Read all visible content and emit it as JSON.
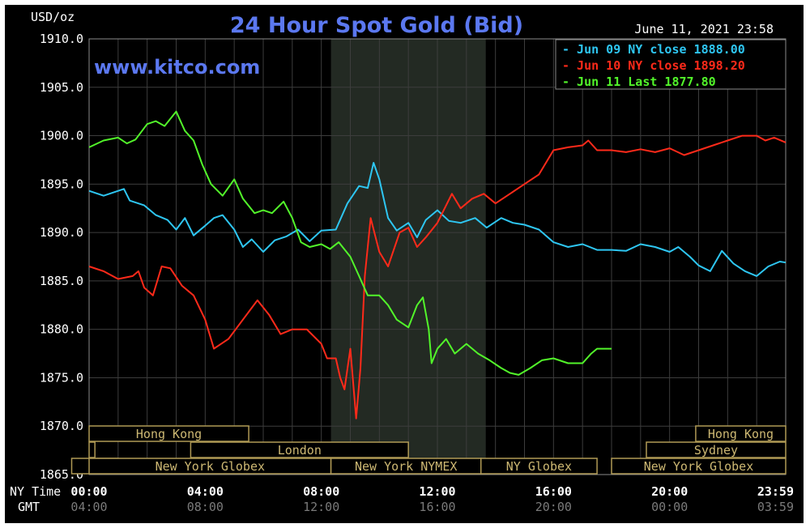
{
  "chart_data": {
    "type": "line",
    "title": "24 Hour Spot Gold (Bid)",
    "watermark": "www.kitco.com",
    "timestamp": "June 11, 2021 23:58",
    "ylabel": "USD/oz",
    "ylim": [
      1865,
      1910
    ],
    "yticks": [
      "1910.0",
      "1905.0",
      "1900.0",
      "1895.0",
      "1890.0",
      "1885.0",
      "1880.0",
      "1875.0",
      "1870.0",
      "1865.0"
    ],
    "x_row_labels": [
      "NY Time",
      "GMT"
    ],
    "xticks_ny": [
      "00:00",
      "04:00",
      "08:00",
      "12:00",
      "16:00",
      "20:00",
      "23:59"
    ],
    "xticks_gmt": [
      "04:00",
      "08:00",
      "12:00",
      "16:00",
      "20:00",
      "00:00",
      "03:59"
    ],
    "xlim": [
      0,
      24
    ],
    "grid": true,
    "shaded_session": [
      8.333,
      13.667
    ],
    "legend": [
      {
        "text": "Jun 09 NY close 1888.00",
        "color": "#2ec6f2"
      },
      {
        "text": "Jun 10 NY close 1898.20",
        "color": "#ff2a1a"
      },
      {
        "text": "Jun 11 Last 1877.80",
        "color": "#52f52a"
      }
    ],
    "markets": [
      {
        "label": "Hong Kong",
        "row": 0,
        "start": 0,
        "end": 5.5
      },
      {
        "label": "Hong Kong",
        "row": 0,
        "start": 20.9,
        "end": 24
      },
      {
        "label": "",
        "row": 1,
        "start": 0,
        "end": 0.2
      },
      {
        "label": "London",
        "row": 1,
        "start": 3.5,
        "end": 11
      },
      {
        "label": "Sydney",
        "row": 1,
        "start": 19.2,
        "end": 24
      },
      {
        "label": "",
        "row": 2,
        "start": -0.6,
        "end": 1.0
      },
      {
        "label": "New York Globex",
        "row": 2,
        "start": 0,
        "end": 8.333
      },
      {
        "label": "New York NYMEX",
        "row": 2,
        "start": 8.333,
        "end": 13.5
      },
      {
        "label": "NY Globex",
        "row": 2,
        "start": 13.5,
        "end": 17.5
      },
      {
        "label": "New York Globex",
        "row": 2,
        "start": 18,
        "end": 24
      }
    ],
    "series": [
      {
        "name": "Jun 09 NY close 1888.00",
        "color": "#2ec6f2",
        "x": [
          0,
          0.5,
          1.2,
          1.4,
          1.9,
          2.3,
          2.7,
          3.0,
          3.3,
          3.6,
          4.0,
          4.3,
          4.6,
          5.0,
          5.3,
          5.6,
          6.0,
          6.4,
          6.8,
          7.2,
          7.6,
          8.0,
          8.5,
          8.9,
          9.3,
          9.6,
          9.8,
          10.0,
          10.3,
          10.6,
          11.0,
          11.3,
          11.6,
          12.0,
          12.4,
          12.8,
          13.3,
          13.7,
          14.2,
          14.6,
          15.0,
          15.5,
          16.0,
          16.5,
          17.0,
          17.5,
          18.0,
          18.5,
          19.0,
          19.5,
          20.0,
          20.3,
          20.7,
          21.0,
          21.4,
          21.8,
          22.2,
          22.6,
          23.0,
          23.4,
          23.8,
          24.0
        ],
        "y": [
          1894.3,
          1893.8,
          1894.5,
          1893.3,
          1892.8,
          1891.8,
          1891.3,
          1890.3,
          1891.5,
          1889.7,
          1890.7,
          1891.5,
          1891.8,
          1890.3,
          1888.5,
          1889.3,
          1888.0,
          1889.2,
          1889.6,
          1890.3,
          1889.1,
          1890.2,
          1890.3,
          1893.0,
          1894.8,
          1894.6,
          1897.2,
          1895.5,
          1891.5,
          1890.2,
          1891.0,
          1889.5,
          1891.3,
          1892.3,
          1891.2,
          1891.0,
          1891.5,
          1890.5,
          1891.5,
          1891.0,
          1890.8,
          1890.3,
          1889.0,
          1888.5,
          1888.8,
          1888.2,
          1888.2,
          1888.1,
          1888.8,
          1888.5,
          1888.0,
          1888.5,
          1887.5,
          1886.6,
          1886.0,
          1888.1,
          1886.8,
          1886.0,
          1885.5,
          1886.5,
          1887.0,
          1886.9
        ]
      },
      {
        "name": "Jun 10 NY close 1898.20",
        "color": "#ff2a1a",
        "x": [
          0,
          0.5,
          1.0,
          1.5,
          1.7,
          1.9,
          2.2,
          2.5,
          2.8,
          3.2,
          3.6,
          4.0,
          4.3,
          4.8,
          5.3,
          5.8,
          6.2,
          6.6,
          7.0,
          7.5,
          8.0,
          8.2,
          8.5,
          8.65,
          8.8,
          9.0,
          9.2,
          9.35,
          9.5,
          9.7,
          10.0,
          10.3,
          10.7,
          11.0,
          11.3,
          11.6,
          12.0,
          12.5,
          12.8,
          13.2,
          13.6,
          14.0,
          14.5,
          15.0,
          15.5,
          16.0,
          16.5,
          17.0,
          17.2,
          17.5,
          18.0,
          18.5,
          19.0,
          19.5,
          20.0,
          20.5,
          21.0,
          21.5,
          22.0,
          22.5,
          23.0,
          23.3,
          23.6,
          24.0
        ],
        "y": [
          1886.5,
          1886.0,
          1885.2,
          1885.5,
          1886.0,
          1884.3,
          1883.5,
          1886.5,
          1886.3,
          1884.5,
          1883.5,
          1881.0,
          1878.0,
          1879.0,
          1881.0,
          1883.0,
          1881.5,
          1879.5,
          1880.0,
          1880.0,
          1878.5,
          1877.0,
          1877.0,
          1875.0,
          1873.8,
          1878.0,
          1870.8,
          1876.0,
          1885.5,
          1891.5,
          1888.0,
          1886.5,
          1890.0,
          1890.5,
          1888.5,
          1889.5,
          1891.0,
          1894.0,
          1892.5,
          1893.5,
          1894.0,
          1893.0,
          1894.0,
          1895.0,
          1896.0,
          1898.5,
          1898.8,
          1899.0,
          1899.5,
          1898.5,
          1898.5,
          1898.3,
          1898.6,
          1898.3,
          1898.7,
          1898.0,
          1898.5,
          1899.0,
          1899.5,
          1900.0,
          1900.0,
          1899.5,
          1899.8,
          1899.3
        ]
      },
      {
        "name": "Jun 11 Last 1877.80",
        "color": "#52f52a",
        "x": [
          0,
          0.5,
          1.0,
          1.3,
          1.6,
          2.0,
          2.3,
          2.6,
          3.0,
          3.3,
          3.6,
          3.9,
          4.2,
          4.6,
          5.0,
          5.3,
          5.7,
          6.0,
          6.3,
          6.7,
          7.0,
          7.3,
          7.6,
          8.0,
          8.3,
          8.6,
          9.0,
          9.3,
          9.6,
          10.0,
          10.3,
          10.6,
          11.0,
          11.3,
          11.5,
          11.7,
          11.8,
          12.0,
          12.3,
          12.6,
          13.0,
          13.4,
          13.8,
          14.2,
          14.5,
          14.8,
          15.2,
          15.6,
          16.0,
          16.5,
          17.0,
          17.3,
          17.5,
          18.0
        ],
        "y": [
          1898.8,
          1899.5,
          1899.8,
          1899.2,
          1899.6,
          1901.2,
          1901.5,
          1901.0,
          1902.5,
          1900.5,
          1899.5,
          1897.0,
          1895.0,
          1893.8,
          1895.5,
          1893.5,
          1892.0,
          1892.3,
          1892.0,
          1893.2,
          1891.5,
          1889.0,
          1888.5,
          1888.8,
          1888.3,
          1889.0,
          1887.5,
          1885.5,
          1883.5,
          1883.5,
          1882.5,
          1881.0,
          1880.2,
          1882.5,
          1883.3,
          1880.0,
          1876.5,
          1878.0,
          1879.0,
          1877.5,
          1878.5,
          1877.5,
          1876.8,
          1876.0,
          1875.5,
          1875.3,
          1876.0,
          1876.8,
          1877.0,
          1876.5,
          1876.5,
          1877.5,
          1878.0,
          1878.0
        ]
      }
    ]
  }
}
